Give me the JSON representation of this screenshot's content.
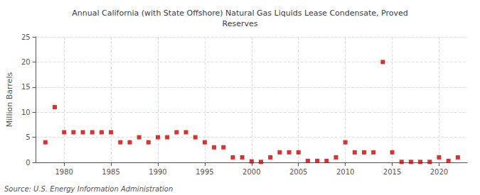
{
  "chart_data": {
    "type": "scatter",
    "title": "Annual California (with State Offshore) Natural Gas Liquids Lease Condensate, Proved\nReserves",
    "ylabel": "Million Barrels",
    "annotations": [
      "Source: U.S. Energy Information Administration"
    ],
    "color": "#cc0000",
    "marker": "square",
    "grid": true,
    "xlim": [
      1977,
      2023
    ],
    "xticks": [
      1980,
      1985,
      1990,
      1995,
      2000,
      2005,
      2010,
      2015,
      2020
    ],
    "ylim": [
      0,
      25
    ],
    "yticks": [
      0,
      5,
      10,
      15,
      20,
      25
    ],
    "x": [
      1978,
      1979,
      1980,
      1981,
      1982,
      1983,
      1984,
      1985,
      1986,
      1987,
      1988,
      1989,
      1990,
      1991,
      1992,
      1993,
      1994,
      1995,
      1996,
      1997,
      1998,
      1999,
      2000,
      2001,
      2002,
      2003,
      2004,
      2005,
      2006,
      2007,
      2008,
      2009,
      2010,
      2011,
      2012,
      2013,
      2014,
      2015,
      2016,
      2017,
      2018,
      2019,
      2020,
      2021,
      2022
    ],
    "values": [
      4,
      11,
      6,
      6,
      6,
      6,
      6,
      6,
      4,
      4,
      5,
      4,
      5,
      5,
      6,
      6,
      5,
      4,
      3,
      3,
      1,
      1,
      0.2,
      0.1,
      1,
      2,
      2,
      2,
      0.3,
      0.3,
      0.3,
      1,
      4,
      2,
      2,
      2,
      20,
      2,
      0.1,
      0.1,
      0.1,
      0.1,
      1,
      0.3,
      1
    ]
  }
}
